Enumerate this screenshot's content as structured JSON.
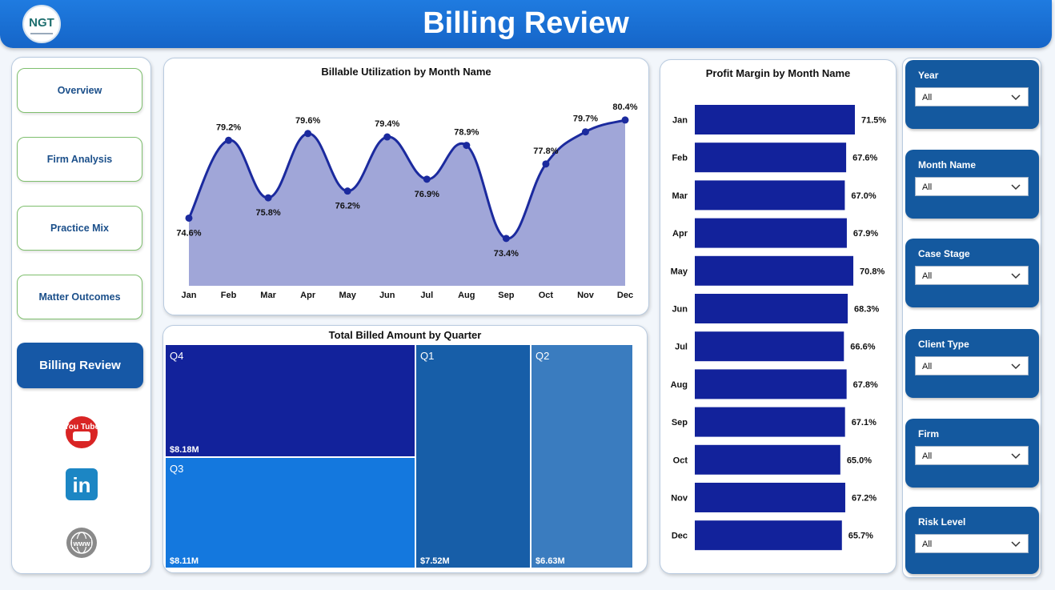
{
  "header": {
    "title": "Billing Review",
    "logo_text": "NGT"
  },
  "nav": {
    "items": [
      "Overview",
      "Firm Analysis",
      "Practice Mix",
      "Matter Outcomes"
    ],
    "active": "Billing Review"
  },
  "social": {
    "icons": [
      "youtube-icon",
      "linkedin-icon",
      "website-icon"
    ],
    "youtube_text": "You Tube",
    "linkedin_text": "in",
    "website_text": "www"
  },
  "colors": {
    "accent": "#1565c8",
    "bar": "#12229b",
    "area_fill": "#a0a6d8",
    "slicer_bg": "#14599f"
  },
  "line_chart": {
    "title": "Billable Utilization by Month Name"
  },
  "bar_chart": {
    "title": "Profit Margin by Month Name"
  },
  "treemap": {
    "title": "Total Billed Amount by Quarter",
    "cells": [
      {
        "label": "Q4",
        "value": "$8.18M"
      },
      {
        "label": "Q3",
        "value": "$8.11M"
      },
      {
        "label": "Q1",
        "value": "$7.52M"
      },
      {
        "label": "Q2",
        "value": "$6.63M"
      }
    ]
  },
  "slicers": [
    {
      "label": "Year",
      "value": "All"
    },
    {
      "label": "Month Name",
      "value": "All"
    },
    {
      "label": "Case Stage",
      "value": "All"
    },
    {
      "label": "Client Type",
      "value": "All"
    },
    {
      "label": "Firm",
      "value": "All"
    },
    {
      "label": "Risk Level",
      "value": "All"
    }
  ],
  "chart_data": [
    {
      "type": "area",
      "title": "Billable Utilization by Month Name",
      "categories": [
        "Jan",
        "Feb",
        "Mar",
        "Apr",
        "May",
        "Jun",
        "Jul",
        "Aug",
        "Sep",
        "Oct",
        "Nov",
        "Dec"
      ],
      "values": [
        74.6,
        79.2,
        75.8,
        79.6,
        76.2,
        79.4,
        76.9,
        78.9,
        73.4,
        77.8,
        79.7,
        80.4
      ],
      "data_labels": [
        "74.6%",
        "79.2%",
        "75.8%",
        "79.6%",
        "76.2%",
        "79.4%",
        "76.9%",
        "78.9%",
        "73.4%",
        "77.8%",
        "79.7%",
        "80.4%"
      ],
      "ylim": [
        70.6,
        81.2
      ],
      "grid": false
    },
    {
      "type": "bar",
      "orientation": "horizontal",
      "title": "Profit Margin by Month Name",
      "categories": [
        "Jan",
        "Feb",
        "Mar",
        "Apr",
        "May",
        "Jun",
        "Jul",
        "Aug",
        "Sep",
        "Oct",
        "Nov",
        "Dec"
      ],
      "values": [
        71.5,
        67.6,
        67.0,
        67.9,
        70.8,
        68.3,
        66.6,
        67.8,
        67.1,
        65.0,
        67.2,
        65.7
      ],
      "data_labels": [
        "71.5%",
        "67.6%",
        "67.0%",
        "67.9%",
        "70.8%",
        "68.3%",
        "66.6%",
        "67.8%",
        "67.1%",
        "65.0%",
        "67.2%",
        "65.7%"
      ],
      "xlim": [
        0,
        71.5
      ],
      "grid": false
    },
    {
      "type": "treemap",
      "title": "Total Billed Amount by Quarter",
      "categories": [
        "Q4",
        "Q3",
        "Q1",
        "Q2"
      ],
      "values": [
        8.18,
        8.11,
        7.52,
        6.63
      ],
      "unit": "$M"
    }
  ]
}
